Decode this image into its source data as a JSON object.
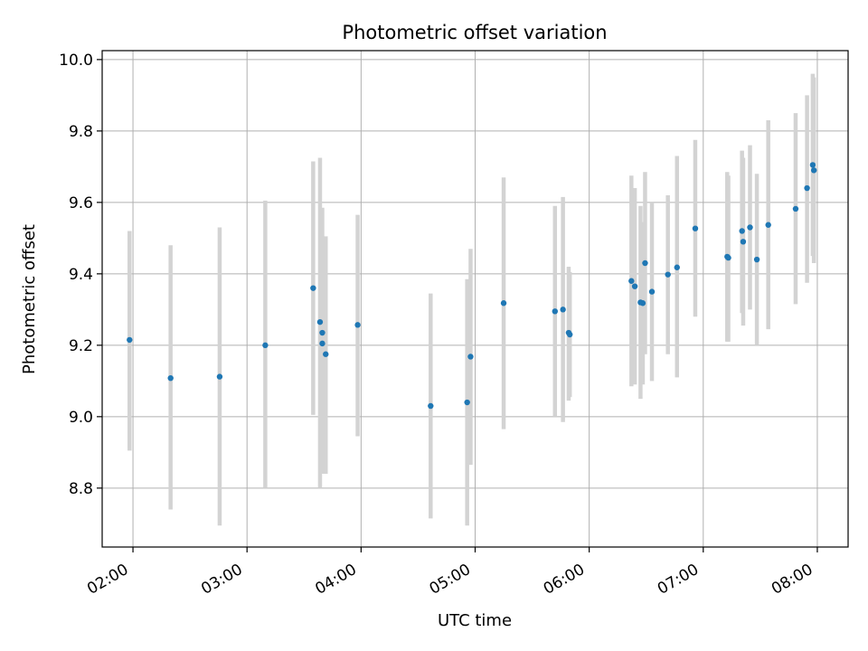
{
  "chart_data": {
    "type": "scatter",
    "title": "Photometric offset variation",
    "xlabel": "UTC time",
    "ylabel": "Photometric offset",
    "xlim": [
      1.73,
      8.27
    ],
    "ylim": [
      8.635,
      10.025
    ],
    "grid": true,
    "x_ticks": [
      {
        "value": 2,
        "label": "02:00"
      },
      {
        "value": 3,
        "label": "03:00"
      },
      {
        "value": 4,
        "label": "04:00"
      },
      {
        "value": 5,
        "label": "05:00"
      },
      {
        "value": 6,
        "label": "06:00"
      },
      {
        "value": 7,
        "label": "07:00"
      },
      {
        "value": 8,
        "label": "08:00"
      }
    ],
    "y_ticks": [
      {
        "value": 8.8,
        "label": "8.8"
      },
      {
        "value": 9.0,
        "label": "9.0"
      },
      {
        "value": 9.2,
        "label": "9.2"
      },
      {
        "value": 9.4,
        "label": "9.4"
      },
      {
        "value": 9.6,
        "label": "9.6"
      },
      {
        "value": 9.8,
        "label": "9.8"
      },
      {
        "value": 10.0,
        "label": "10.0"
      }
    ],
    "colors": {
      "point": "#1f77b4",
      "errorbar": "#d3d3d3",
      "grid": "#b0b0b0",
      "axis": "#000000"
    },
    "points": [
      {
        "t": 1.97,
        "y": 9.215,
        "lo": 8.905,
        "hi": 9.52
      },
      {
        "t": 2.33,
        "y": 9.108,
        "lo": 8.74,
        "hi": 9.48
      },
      {
        "t": 2.76,
        "y": 9.112,
        "lo": 8.695,
        "hi": 9.53
      },
      {
        "t": 3.16,
        "y": 9.2,
        "lo": 8.8,
        "hi": 9.605
      },
      {
        "t": 3.58,
        "y": 9.36,
        "lo": 9.005,
        "hi": 9.715
      },
      {
        "t": 3.64,
        "y": 9.265,
        "lo": 8.8,
        "hi": 9.725
      },
      {
        "t": 3.66,
        "y": 9.235,
        "lo": 8.88,
        "hi": 9.585
      },
      {
        "t": 3.66,
        "y": 9.205,
        "lo": 8.84,
        "hi": 9.505
      },
      {
        "t": 3.69,
        "y": 9.175,
        "lo": 8.84,
        "hi": 9.505
      },
      {
        "t": 3.97,
        "y": 9.257,
        "lo": 8.945,
        "hi": 9.565
      },
      {
        "t": 4.61,
        "y": 9.03,
        "lo": 8.715,
        "hi": 9.345
      },
      {
        "t": 4.93,
        "y": 9.04,
        "lo": 8.695,
        "hi": 9.385
      },
      {
        "t": 4.96,
        "y": 9.168,
        "lo": 8.865,
        "hi": 9.47
      },
      {
        "t": 5.25,
        "y": 9.318,
        "lo": 8.965,
        "hi": 9.67
      },
      {
        "t": 5.7,
        "y": 9.295,
        "lo": 9.0,
        "hi": 9.59
      },
      {
        "t": 5.77,
        "y": 9.3,
        "lo": 8.985,
        "hi": 9.615
      },
      {
        "t": 5.82,
        "y": 9.235,
        "lo": 9.045,
        "hi": 9.42
      },
      {
        "t": 5.83,
        "y": 9.23,
        "lo": 9.055,
        "hi": 9.405
      },
      {
        "t": 6.37,
        "y": 9.38,
        "lo": 9.085,
        "hi": 9.675
      },
      {
        "t": 6.4,
        "y": 9.365,
        "lo": 9.09,
        "hi": 9.64
      },
      {
        "t": 6.45,
        "y": 9.32,
        "lo": 9.05,
        "hi": 9.59
      },
      {
        "t": 6.47,
        "y": 9.318,
        "lo": 9.09,
        "hi": 9.545
      },
      {
        "t": 6.49,
        "y": 9.43,
        "lo": 9.175,
        "hi": 9.685
      },
      {
        "t": 6.55,
        "y": 9.35,
        "lo": 9.1,
        "hi": 9.6
      },
      {
        "t": 6.69,
        "y": 9.398,
        "lo": 9.175,
        "hi": 9.62
      },
      {
        "t": 6.77,
        "y": 9.418,
        "lo": 9.11,
        "hi": 9.73
      },
      {
        "t": 6.93,
        "y": 9.527,
        "lo": 9.28,
        "hi": 9.775
      },
      {
        "t": 7.21,
        "y": 9.448,
        "lo": 9.21,
        "hi": 9.685
      },
      {
        "t": 7.22,
        "y": 9.445,
        "lo": 9.21,
        "hi": 9.675
      },
      {
        "t": 7.34,
        "y": 9.52,
        "lo": 9.29,
        "hi": 9.745
      },
      {
        "t": 7.35,
        "y": 9.49,
        "lo": 9.255,
        "hi": 9.725
      },
      {
        "t": 7.41,
        "y": 9.53,
        "lo": 9.3,
        "hi": 9.76
      },
      {
        "t": 7.47,
        "y": 9.44,
        "lo": 9.2,
        "hi": 9.68
      },
      {
        "t": 7.57,
        "y": 9.537,
        "lo": 9.245,
        "hi": 9.83
      },
      {
        "t": 7.81,
        "y": 9.582,
        "lo": 9.315,
        "hi": 9.85
      },
      {
        "t": 7.91,
        "y": 9.64,
        "lo": 9.375,
        "hi": 9.9
      },
      {
        "t": 7.96,
        "y": 9.705,
        "lo": 9.45,
        "hi": 9.96
      },
      {
        "t": 7.97,
        "y": 9.69,
        "lo": 9.43,
        "hi": 9.95
      }
    ]
  }
}
